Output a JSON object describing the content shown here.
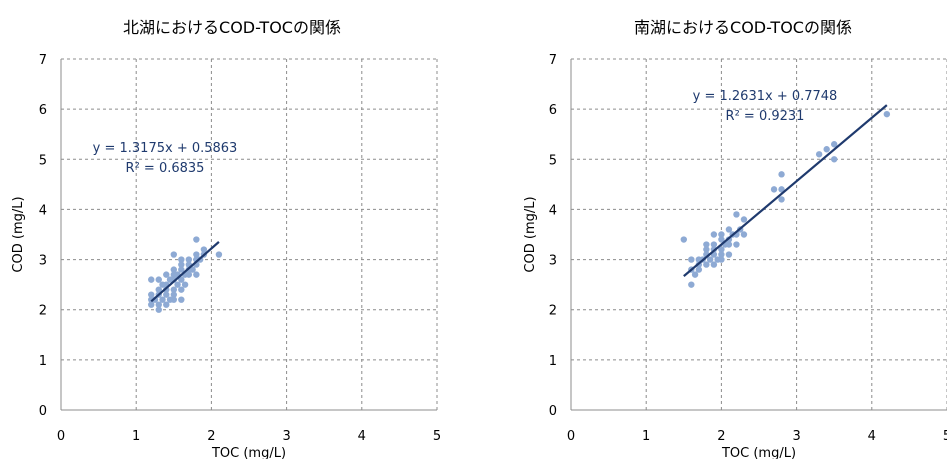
{
  "chart_data": [
    {
      "type": "scatter",
      "title": "北湖におけるCOD-TOCの関係",
      "xlabel": "TOC (mg/L)",
      "ylabel": "COD (mg/L)",
      "xlim": [
        0,
        5
      ],
      "ylim": [
        0,
        7
      ],
      "xticks": [
        0,
        1,
        2,
        3,
        4,
        5
      ],
      "yticks": [
        0,
        1,
        2,
        3,
        4,
        5,
        6,
        7
      ],
      "grid": true,
      "legend": "none",
      "point_color": "#8eaad4",
      "trend_color": "#1f3a6e",
      "trendline": {
        "slope": 1.3175,
        "intercept": 0.5863,
        "x_range": [
          1.2,
          2.1
        ]
      },
      "equation": "y = 1.3175x + 0.5863",
      "r2": "R² = 0.6835",
      "points": [
        [
          1.2,
          2.1
        ],
        [
          1.2,
          2.2
        ],
        [
          1.2,
          2.3
        ],
        [
          1.2,
          2.6
        ],
        [
          1.25,
          2.2
        ],
        [
          1.3,
          2.0
        ],
        [
          1.3,
          2.1
        ],
        [
          1.3,
          2.3
        ],
        [
          1.3,
          2.4
        ],
        [
          1.3,
          2.6
        ],
        [
          1.35,
          2.2
        ],
        [
          1.35,
          2.5
        ],
        [
          1.4,
          2.1
        ],
        [
          1.4,
          2.3
        ],
        [
          1.4,
          2.4
        ],
        [
          1.4,
          2.5
        ],
        [
          1.4,
          2.7
        ],
        [
          1.45,
          2.2
        ],
        [
          1.45,
          2.6
        ],
        [
          1.5,
          2.2
        ],
        [
          1.5,
          2.3
        ],
        [
          1.5,
          2.4
        ],
        [
          1.5,
          2.6
        ],
        [
          1.5,
          2.7
        ],
        [
          1.5,
          2.8
        ],
        [
          1.5,
          3.1
        ],
        [
          1.55,
          2.5
        ],
        [
          1.55,
          2.7
        ],
        [
          1.6,
          2.2
        ],
        [
          1.6,
          2.4
        ],
        [
          1.6,
          2.6
        ],
        [
          1.6,
          2.8
        ],
        [
          1.6,
          2.9
        ],
        [
          1.6,
          3.0
        ],
        [
          1.65,
          2.5
        ],
        [
          1.65,
          2.7
        ],
        [
          1.7,
          2.7
        ],
        [
          1.7,
          2.8
        ],
        [
          1.7,
          2.9
        ],
        [
          1.7,
          3.0
        ],
        [
          1.75,
          2.8
        ],
        [
          1.8,
          2.7
        ],
        [
          1.8,
          2.9
        ],
        [
          1.8,
          3.0
        ],
        [
          1.8,
          3.1
        ],
        [
          1.8,
          3.4
        ],
        [
          1.85,
          3.0
        ],
        [
          1.9,
          3.1
        ],
        [
          1.9,
          3.2
        ],
        [
          2.1,
          3.1
        ]
      ]
    },
    {
      "type": "scatter",
      "title": "南湖におけるCOD-TOCの関係",
      "xlabel": "TOC (mg/L)",
      "ylabel": "COD (mg/L)",
      "xlim": [
        0,
        5
      ],
      "ylim": [
        0,
        7
      ],
      "xticks": [
        0,
        1,
        2,
        3,
        4,
        5
      ],
      "yticks": [
        0,
        1,
        2,
        3,
        4,
        5,
        6,
        7
      ],
      "grid": true,
      "legend": "none",
      "point_color": "#8eaad4",
      "trend_color": "#1f3a6e",
      "trendline": {
        "slope": 1.2631,
        "intercept": 0.7748,
        "x_range": [
          1.5,
          4.2
        ]
      },
      "equation": "y = 1.2631x + 0.7748",
      "r2": "R² = 0.9231",
      "points": [
        [
          1.5,
          3.4
        ],
        [
          1.6,
          2.5
        ],
        [
          1.6,
          2.8
        ],
        [
          1.6,
          3.0
        ],
        [
          1.65,
          2.7
        ],
        [
          1.7,
          2.8
        ],
        [
          1.7,
          2.9
        ],
        [
          1.7,
          3.0
        ],
        [
          1.75,
          3.0
        ],
        [
          1.8,
          2.9
        ],
        [
          1.8,
          3.1
        ],
        [
          1.8,
          3.2
        ],
        [
          1.8,
          3.3
        ],
        [
          1.85,
          3.0
        ],
        [
          1.9,
          2.9
        ],
        [
          1.9,
          3.1
        ],
        [
          1.9,
          3.2
        ],
        [
          1.9,
          3.3
        ],
        [
          1.9,
          3.5
        ],
        [
          1.95,
          3.0
        ],
        [
          2.0,
          3.0
        ],
        [
          2.0,
          3.1
        ],
        [
          2.0,
          3.2
        ],
        [
          2.0,
          3.4
        ],
        [
          2.0,
          3.5
        ],
        [
          2.05,
          3.3
        ],
        [
          2.1,
          3.1
        ],
        [
          2.1,
          3.3
        ],
        [
          2.1,
          3.4
        ],
        [
          2.1,
          3.6
        ],
        [
          2.15,
          3.5
        ],
        [
          2.2,
          3.3
        ],
        [
          2.2,
          3.5
        ],
        [
          2.2,
          3.9
        ],
        [
          2.25,
          3.6
        ],
        [
          2.3,
          3.5
        ],
        [
          2.3,
          3.8
        ],
        [
          2.7,
          4.4
        ],
        [
          2.8,
          4.2
        ],
        [
          2.8,
          4.4
        ],
        [
          2.8,
          4.7
        ],
        [
          3.3,
          5.1
        ],
        [
          3.4,
          5.2
        ],
        [
          3.5,
          5.0
        ],
        [
          3.5,
          5.3
        ],
        [
          4.2,
          5.9
        ]
      ]
    }
  ]
}
